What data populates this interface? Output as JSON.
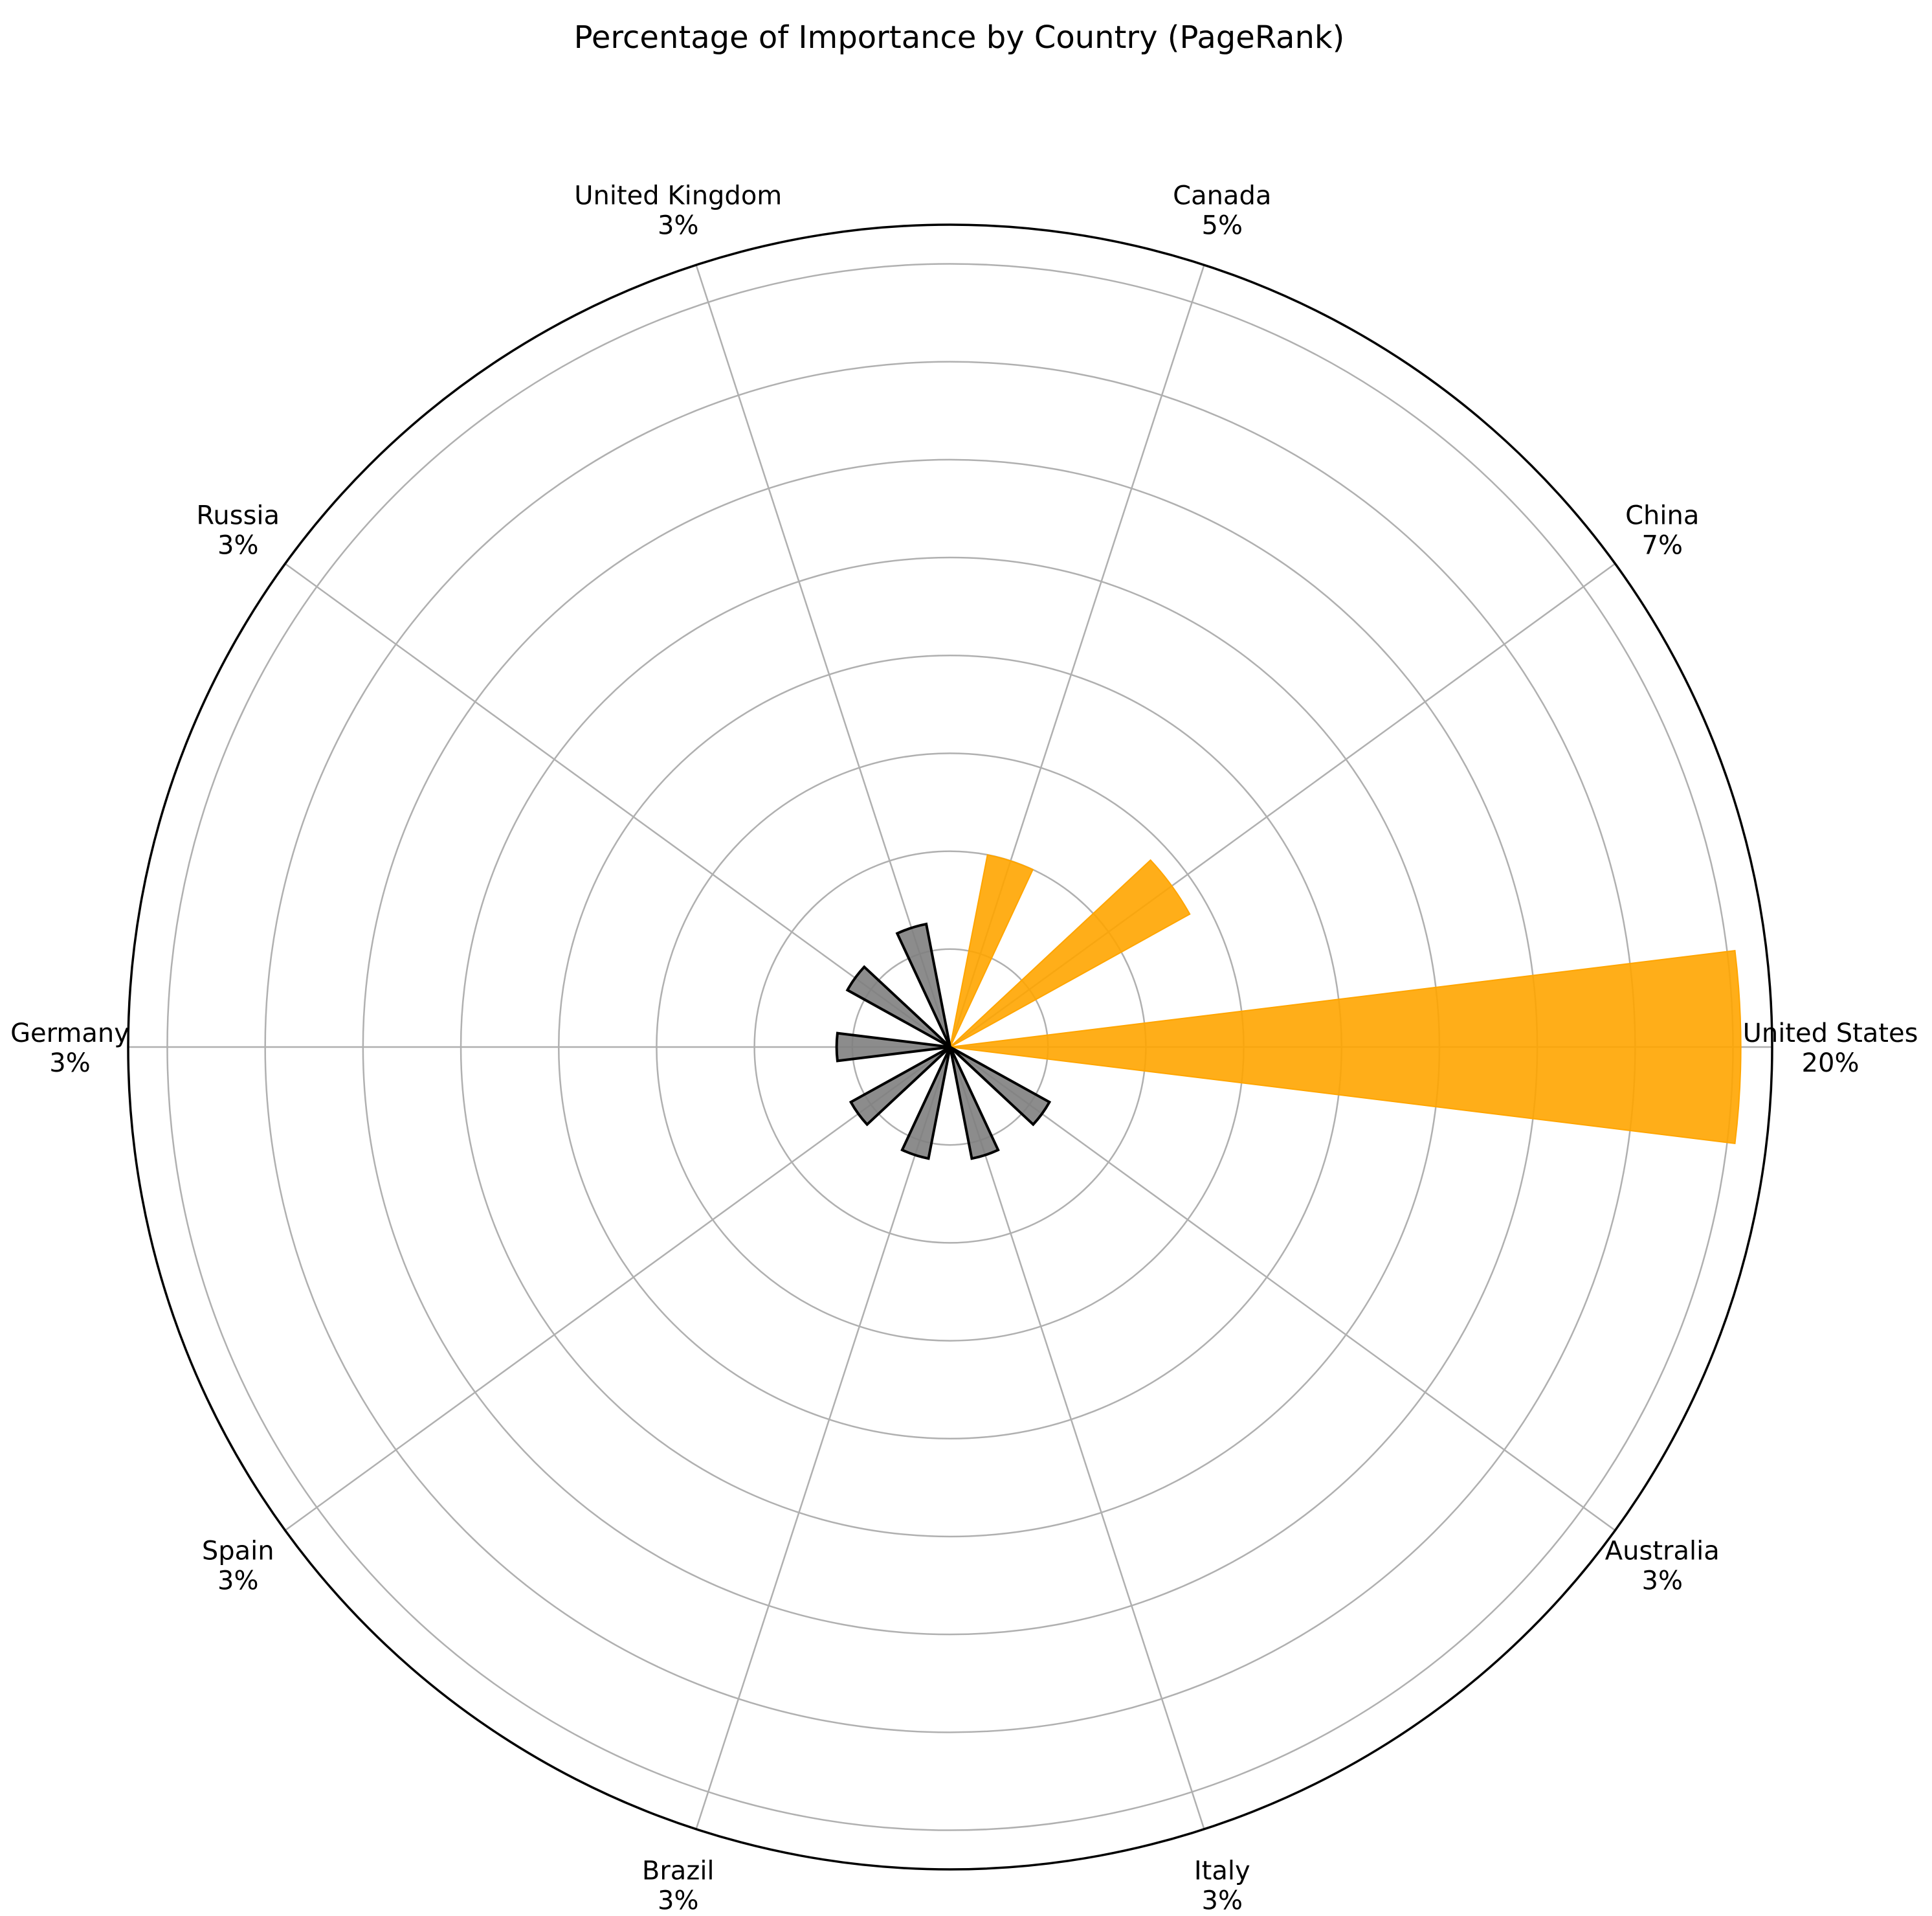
{
  "chart_data": {
    "type": "polar-bar",
    "title": "Percentage of Importance by Country (PageRank)",
    "categories": [
      "United States",
      "China",
      "Canada",
      "United Kingdom",
      "Russia",
      "Germany",
      "Spain",
      "Brazil",
      "Italy",
      "Australia"
    ],
    "values": [
      20.2,
      7.0,
      5.0,
      3.2,
      3.0,
      2.9,
      2.9,
      2.9,
      2.9,
      2.9
    ],
    "value_labels": [
      "20%",
      "7%",
      "5%",
      "3%",
      "3%",
      "3%",
      "3%",
      "3%",
      "3%",
      "3%"
    ],
    "highlight_top_n": 3,
    "rmax": 21,
    "grid_rings": [
      2.5,
      5,
      7.5,
      10,
      12.5,
      15,
      17.5,
      20
    ],
    "grid": true,
    "colors": {
      "highlight": "#FFA500",
      "other": "#808080",
      "other_edge": "#000000",
      "grid": "#b0b0b0",
      "frame": "#000000"
    }
  }
}
